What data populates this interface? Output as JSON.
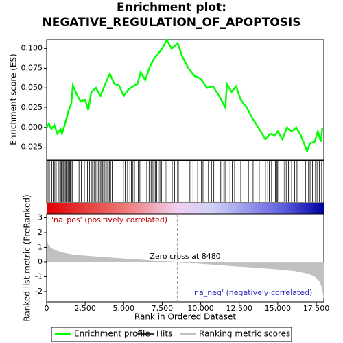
{
  "chart_data": [
    {
      "type": "line",
      "title": "Enrichment plot: NEGATIVE_REGULATION_OF_APOPTOSIS",
      "ylabel": "Enrichment score (ES)",
      "xlim": [
        0,
        17990
      ],
      "ylim": [
        -0.041,
        0.111
      ],
      "yticks": [
        {
          "value": -0.025,
          "label": "-0.025"
        },
        {
          "value": 0,
          "label": "0.000"
        },
        {
          "value": 0.025,
          "label": "0.025"
        },
        {
          "value": 0.05,
          "label": "0.050"
        },
        {
          "value": 0.075,
          "label": "0.075"
        },
        {
          "value": 0.1,
          "label": "0.100"
        }
      ],
      "series": [
        {
          "name": "Enrichment profile",
          "color": "#00ff00",
          "x": [
            0,
            150,
            300,
            500,
            700,
            900,
            1000,
            1200,
            1400,
            1600,
            1700,
            2000,
            2200,
            2500,
            2700,
            2900,
            3200,
            3500,
            3800,
            4100,
            4400,
            4700,
            5000,
            5300,
            5600,
            5900,
            6100,
            6400,
            6700,
            7000,
            7300,
            7500,
            7800,
            8100,
            8300,
            8500,
            8800,
            9200,
            9600,
            10000,
            10400,
            10800,
            11200,
            11600,
            11700,
            12000,
            12300,
            12600,
            13000,
            13400,
            13800,
            14200,
            14500,
            14800,
            15000,
            15300,
            15600,
            15900,
            16200,
            16500,
            16900,
            17100,
            17400,
            17600,
            17800,
            17900
          ],
          "values": [
            0,
            0.005,
            -0.002,
            0.003,
            -0.008,
            -0.002,
            -0.008,
            0.005,
            0.02,
            0.03,
            0.053,
            0.04,
            0.033,
            0.035,
            0.022,
            0.045,
            0.05,
            0.04,
            0.055,
            0.068,
            0.055,
            0.053,
            0.04,
            0.048,
            0.052,
            0.055,
            0.07,
            0.06,
            0.077,
            0.088,
            0.095,
            0.1,
            0.111,
            0.1,
            0.103,
            0.107,
            0.09,
            0.075,
            0.065,
            0.062,
            0.05,
            0.052,
            0.04,
            0.025,
            0.055,
            0.045,
            0.052,
            0.035,
            0.025,
            0.01,
            -0.002,
            -0.015,
            -0.008,
            -0.01,
            -0.005,
            -0.015,
            0,
            -0.005,
            0,
            -0.01,
            -0.03,
            -0.02,
            -0.018,
            -0.005,
            -0.018,
            0
          ]
        }
      ]
    },
    {
      "type": "hits",
      "xlim": [
        0,
        17990
      ],
      "series": [
        {
          "name": "Hits",
          "color": "#000000",
          "x": [
            90,
            180,
            330,
            420,
            530,
            620,
            760,
            850,
            900,
            960,
            1020,
            1080,
            1150,
            1210,
            1270,
            1320,
            1380,
            1430,
            1490,
            1540,
            1600,
            1680,
            2100,
            2250,
            2450,
            2650,
            2780,
            2900,
            2980,
            3080,
            3200,
            3350,
            3480,
            3560,
            3620,
            3700,
            3780,
            3850,
            3920,
            4000,
            4080,
            4150,
            4250,
            4700,
            4980,
            5100,
            5250,
            5400,
            5500,
            5600,
            5700,
            5850,
            5950,
            6050,
            6500,
            6650,
            6780,
            6900,
            6980,
            7050,
            7150,
            7250,
            7350,
            7450,
            7550,
            7700,
            7800,
            7950,
            8150,
            8300,
            8500,
            8550,
            9300,
            9500,
            9800,
            9950,
            10050,
            10150,
            10500,
            10700,
            10850,
            11300,
            11500,
            11580,
            11650,
            11900,
            12050,
            12200,
            12600,
            12800,
            13100,
            13400,
            13800,
            14200,
            14350,
            14450,
            14600,
            14850,
            14950,
            15000,
            15350,
            15450,
            15550,
            15700,
            15900,
            16100,
            16250,
            16800,
            16900,
            17000,
            17100,
            17250,
            17350,
            17450,
            17550,
            17700,
            17850
          ]
        }
      ]
    },
    {
      "type": "area",
      "xlabel": "Rank in Ordered Dataset",
      "ylabel": "Ranked list metric (PreRanked)",
      "xlim": [
        0,
        17990
      ],
      "ylim": [
        -2.7,
        3.26
      ],
      "xticks": [
        0,
        {
          "value": 2500,
          "label": "2,500"
        },
        {
          "value": 5000,
          "label": "5,000"
        },
        {
          "value": 7500,
          "label": "7,500"
        },
        {
          "value": 10000,
          "label": "10,000"
        },
        {
          "value": 12500,
          "label": "12,500"
        },
        {
          "value": 15000,
          "label": "15,000"
        },
        {
          "value": 17500,
          "label": "17,500"
        }
      ],
      "yticks": [
        -2,
        -1,
        0,
        1,
        2,
        3
      ],
      "zero_cross": 8480,
      "annotations": [
        "'na_pos' (positively correlated)",
        "Zero cross at 8480",
        "'na_neg' (negatively correlated)"
      ],
      "series": [
        {
          "name": "Ranking metric scores",
          "color": "#c0c0c0",
          "x": [
            0,
            100,
            300,
            600,
            1000,
            1500,
            2000,
            3000,
            4000,
            5000,
            6000,
            7000,
            8480,
            10000,
            12000,
            13500,
            15000,
            16000,
            17000,
            17400,
            17700,
            17850,
            17990
          ],
          "values": [
            1.6,
            1.2,
            0.95,
            0.8,
            0.65,
            0.55,
            0.48,
            0.4,
            0.32,
            0.25,
            0.18,
            0.1,
            0,
            -0.12,
            -0.28,
            -0.38,
            -0.5,
            -0.6,
            -0.8,
            -1.0,
            -1.3,
            -1.7,
            -2.5
          ]
        }
      ]
    }
  ]
}
